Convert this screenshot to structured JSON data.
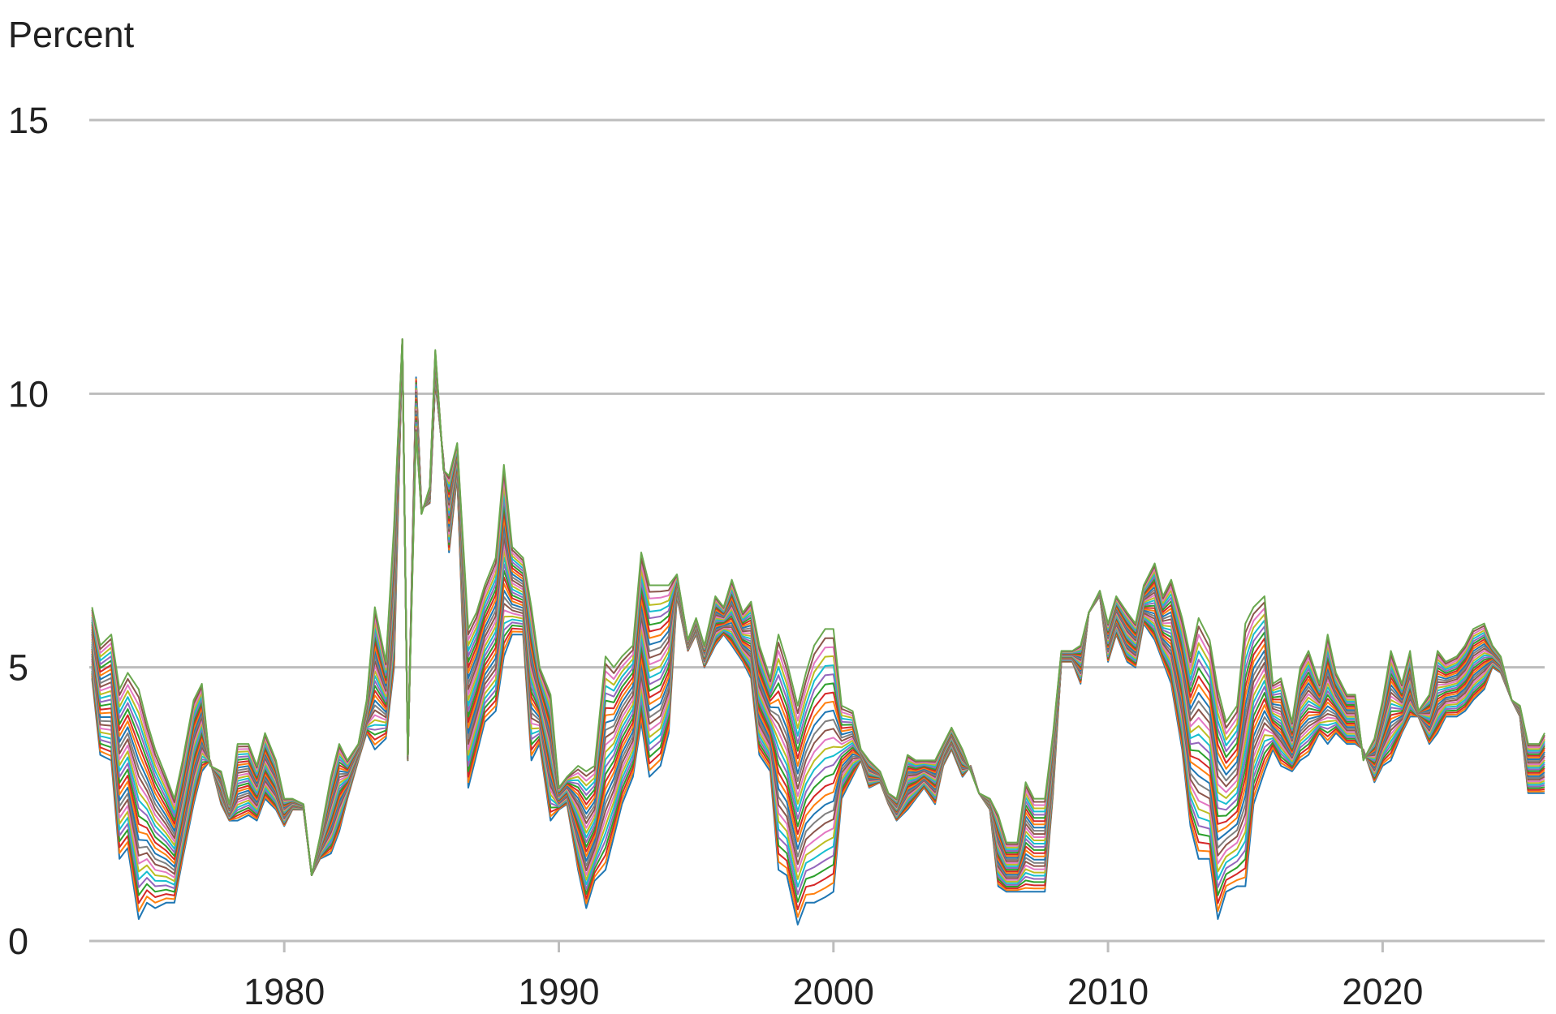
{
  "chart_data": {
    "type": "line",
    "title": "",
    "ylabel": "Percent",
    "xlabel": "",
    "xlim": [
      1972.9,
      2025.9
    ],
    "ylim": [
      0,
      15
    ],
    "yticks": [
      0,
      5,
      10,
      15
    ],
    "xticks": [
      1980,
      1990,
      2000,
      2010,
      2020
    ],
    "grid": true,
    "legend": "none",
    "band_count": 30,
    "band_colors": [
      "#1f77b4",
      "#ff7f0e",
      "#d62728",
      "#2ca02c",
      "#9467bd",
      "#17becf",
      "#bcbd22",
      "#e377c2",
      "#8c564b",
      "#7f7f7f"
    ],
    "series_top": {
      "x": [
        1973.0,
        1973.3,
        1973.7,
        1974.0,
        1974.3,
        1974.7,
        1975.0,
        1975.3,
        1975.7,
        1976.0,
        1976.3,
        1976.7,
        1977.0,
        1977.3,
        1977.7,
        1978.0,
        1978.3,
        1978.7,
        1979.0,
        1979.3,
        1979.7,
        1980.0,
        1980.3,
        1980.7,
        1981.0,
        1981.3,
        1981.7,
        1982.0,
        1982.3,
        1982.7,
        1983.0,
        1983.3,
        1983.7,
        1984.0,
        1984.3,
        1984.5,
        1984.8,
        1985.0,
        1985.3,
        1985.5,
        1985.8,
        1986.0,
        1986.3,
        1986.7,
        1987.0,
        1987.3,
        1987.7,
        1988.0,
        1988.3,
        1988.7,
        1989.0,
        1989.3,
        1989.7,
        1990.0,
        1990.3,
        1990.7,
        1991.0,
        1991.3,
        1991.7,
        1992.0,
        1992.3,
        1992.7,
        1993.0,
        1993.3,
        1993.7,
        1994.0,
        1994.3,
        1994.7,
        1995.0,
        1995.3,
        1995.7,
        1996.0,
        1996.3,
        1996.7,
        1997.0,
        1997.3,
        1997.7,
        1998.0,
        1998.3,
        1998.7,
        1999.0,
        1999.3,
        1999.7,
        2000.0,
        2000.3,
        2000.7,
        2001.0,
        2001.3,
        2001.7,
        2002.0,
        2002.3,
        2002.7,
        2003.0,
        2003.3,
        2003.7,
        2004.0,
        2004.3,
        2004.7,
        2005.0,
        2005.3,
        2005.7,
        2006.0,
        2006.3,
        2006.7,
        2007.0,
        2007.3,
        2007.7,
        2008.0,
        2008.3,
        2008.7,
        2009.0,
        2009.3,
        2009.7,
        2010.0,
        2010.3,
        2010.7,
        2011.0,
        2011.3,
        2011.7,
        2012.0,
        2012.3,
        2012.7,
        2013.0,
        2013.3,
        2013.7,
        2014.0,
        2014.3,
        2014.7,
        2015.0,
        2015.3,
        2015.7,
        2016.0,
        2016.3,
        2016.7,
        2017.0,
        2017.3,
        2017.7,
        2018.0,
        2018.3,
        2018.7,
        2019.0,
        2019.3,
        2019.7,
        2020.0,
        2020.3,
        2020.7,
        2021.0,
        2021.3,
        2021.7,
        2022.0,
        2022.3,
        2022.7,
        2023.0,
        2023.3,
        2023.7,
        2024.0,
        2024.3,
        2024.7,
        2025.0,
        2025.3,
        2025.7,
        2025.9
      ],
      "y": [
        6.1,
        5.4,
        5.6,
        4.6,
        4.9,
        4.6,
        4.0,
        3.5,
        3.0,
        2.6,
        3.3,
        4.4,
        4.7,
        3.2,
        3.1,
        2.5,
        3.6,
        3.6,
        3.2,
        3.8,
        3.3,
        2.6,
        2.6,
        2.5,
        1.2,
        1.9,
        3.0,
        3.6,
        3.3,
        3.6,
        4.4,
        6.1,
        5.1,
        7.6,
        11.0,
        3.4,
        9.3,
        7.8,
        8.3,
        10.8,
        8.6,
        8.5,
        9.1,
        5.7,
        6.0,
        6.5,
        7.0,
        8.7,
        7.2,
        7.0,
        6.1,
        5.0,
        4.5,
        2.8,
        3.0,
        3.2,
        3.1,
        3.2,
        5.2,
        5.0,
        5.2,
        5.4,
        7.1,
        6.5,
        6.5,
        6.5,
        6.7,
        5.5,
        5.9,
        5.4,
        6.3,
        6.1,
        6.6,
        6.0,
        6.2,
        5.4,
        4.8,
        5.6,
        5.1,
        4.3,
        4.9,
        5.4,
        5.7,
        5.7,
        4.3,
        4.2,
        3.5,
        3.3,
        3.1,
        2.7,
        2.6,
        3.4,
        3.3,
        3.3,
        3.3,
        3.6,
        3.9,
        3.5,
        3.1,
        2.7,
        2.6,
        2.3,
        1.8,
        1.8,
        2.9,
        2.6,
        2.6,
        3.8,
        5.3,
        5.3,
        5.4,
        6.0,
        6.4,
        5.8,
        6.3,
        6.0,
        5.8,
        6.5,
        6.9,
        6.3,
        6.6,
        5.9,
        5.2,
        5.9,
        5.5,
        4.6,
        4.0,
        4.3,
        5.8,
        6.1,
        6.3,
        4.7,
        4.8,
        4.0,
        5.0,
        5.3,
        4.7,
        5.6,
        4.9,
        4.5,
        4.5,
        3.3,
        3.7,
        4.4,
        5.3,
        4.7,
        5.3,
        4.2,
        4.5,
        5.3,
        5.1,
        5.2,
        5.4,
        5.7,
        5.8,
        5.4,
        5.2,
        4.4,
        4.3,
        3.6,
        3.6,
        3.8
      ]
    },
    "series_bottom": {
      "x": [
        1973.0,
        1973.3,
        1973.7,
        1974.0,
        1974.3,
        1974.7,
        1975.0,
        1975.3,
        1975.7,
        1976.0,
        1976.3,
        1976.7,
        1977.0,
        1977.3,
        1977.7,
        1978.0,
        1978.3,
        1978.7,
        1979.0,
        1979.3,
        1979.7,
        1980.0,
        1980.3,
        1980.7,
        1981.0,
        1981.3,
        1981.7,
        1982.0,
        1982.3,
        1982.7,
        1983.0,
        1983.3,
        1983.7,
        1984.0,
        1984.3,
        1984.5,
        1984.8,
        1985.0,
        1985.3,
        1985.5,
        1985.8,
        1986.0,
        1986.3,
        1986.7,
        1987.0,
        1987.3,
        1987.7,
        1988.0,
        1988.3,
        1988.7,
        1989.0,
        1989.3,
        1989.7,
        1990.0,
        1990.3,
        1990.7,
        1991.0,
        1991.3,
        1991.7,
        1992.0,
        1992.3,
        1992.7,
        1993.0,
        1993.3,
        1993.7,
        1994.0,
        1994.3,
        1994.7,
        1995.0,
        1995.3,
        1995.7,
        1996.0,
        1996.3,
        1996.7,
        1997.0,
        1997.3,
        1997.7,
        1998.0,
        1998.3,
        1998.7,
        1999.0,
        1999.3,
        1999.7,
        2000.0,
        2000.3,
        2000.7,
        2001.0,
        2001.3,
        2001.7,
        2002.0,
        2002.3,
        2002.7,
        2003.0,
        2003.3,
        2003.7,
        2004.0,
        2004.3,
        2004.7,
        2005.0,
        2005.3,
        2005.7,
        2006.0,
        2006.3,
        2006.7,
        2007.0,
        2007.3,
        2007.7,
        2008.0,
        2008.3,
        2008.7,
        2009.0,
        2009.3,
        2009.7,
        2010.0,
        2010.3,
        2010.7,
        2011.0,
        2011.3,
        2011.7,
        2012.0,
        2012.3,
        2012.7,
        2013.0,
        2013.3,
        2013.7,
        2014.0,
        2014.3,
        2014.7,
        2015.0,
        2015.3,
        2015.7,
        2016.0,
        2016.3,
        2016.7,
        2017.0,
        2017.3,
        2017.7,
        2018.0,
        2018.3,
        2018.7,
        2019.0,
        2019.3,
        2019.7,
        2020.0,
        2020.3,
        2020.7,
        2021.0,
        2021.3,
        2021.7,
        2022.0,
        2022.3,
        2022.7,
        2023.0,
        2023.3,
        2023.7,
        2024.0,
        2024.3,
        2024.7,
        2025.0,
        2025.3,
        2025.7,
        2025.9
      ],
      "y": [
        4.8,
        3.4,
        3.3,
        1.5,
        1.7,
        0.4,
        0.7,
        0.6,
        0.7,
        0.7,
        1.5,
        2.5,
        3.1,
        3.3,
        2.5,
        2.2,
        2.2,
        2.3,
        2.2,
        2.6,
        2.4,
        2.1,
        2.4,
        2.4,
        1.2,
        1.5,
        1.6,
        2.0,
        2.6,
        3.3,
        3.8,
        3.5,
        3.7,
        5.0,
        10.9,
        3.3,
        10.3,
        7.9,
        8.0,
        10.2,
        8.8,
        7.1,
        8.5,
        2.8,
        3.4,
        4.0,
        4.2,
        5.2,
        5.6,
        5.6,
        3.3,
        3.6,
        2.2,
        2.4,
        2.5,
        1.3,
        0.6,
        1.1,
        1.3,
        1.9,
        2.5,
        3.0,
        4.0,
        3.0,
        3.2,
        3.8,
        6.3,
        5.3,
        5.6,
        5.0,
        5.4,
        5.6,
        5.4,
        5.1,
        4.8,
        3.4,
        3.1,
        1.3,
        1.2,
        0.3,
        0.7,
        0.7,
        0.8,
        0.9,
        2.6,
        3.0,
        3.3,
        2.8,
        2.9,
        2.5,
        2.2,
        2.4,
        2.6,
        2.8,
        2.5,
        3.2,
        3.5,
        3.0,
        3.2,
        2.7,
        2.4,
        1.0,
        0.9,
        0.9,
        0.9,
        0.9,
        0.9,
        2.7,
        5.1,
        5.1,
        4.7,
        6.0,
        6.3,
        5.1,
        5.6,
        5.1,
        5.0,
        5.8,
        5.5,
        5.1,
        4.7,
        3.5,
        2.1,
        1.5,
        1.5,
        0.4,
        0.9,
        1.0,
        1.0,
        2.5,
        3.1,
        3.5,
        3.2,
        3.1,
        3.3,
        3.4,
        3.8,
        3.6,
        3.8,
        3.6,
        3.6,
        3.5,
        2.9,
        3.2,
        3.3,
        3.8,
        4.1,
        4.1,
        3.6,
        3.8,
        4.1,
        4.1,
        4.2,
        4.4,
        4.6,
        5.0,
        4.9,
        4.4,
        4.1,
        2.7,
        2.7,
        2.7
      ]
    }
  }
}
